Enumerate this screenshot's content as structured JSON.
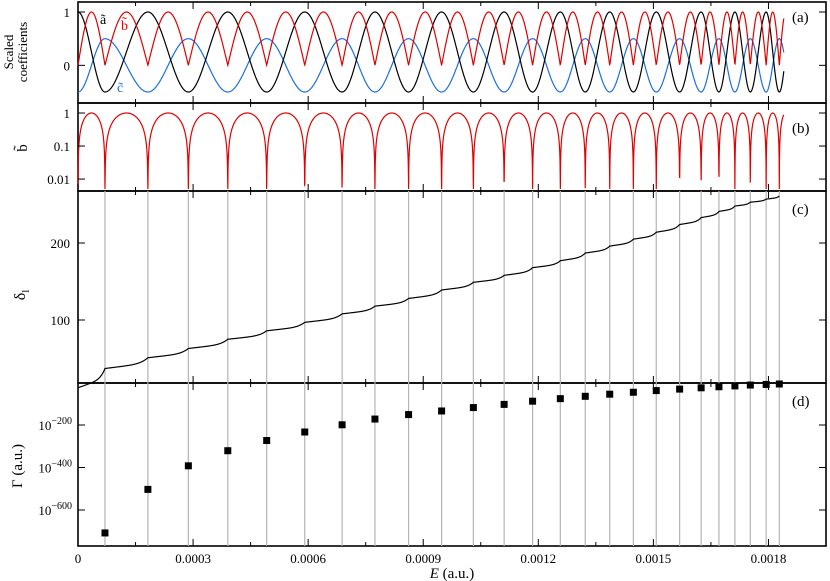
{
  "figure": {
    "x_axis_label_main": "E",
    "x_axis_label_unit": " (a.u.)",
    "colors": {
      "a": "#000000",
      "b": "#e00000",
      "c": "#1a6fe0",
      "marker": "#000000",
      "guide": "#b4b4b4"
    }
  },
  "chart_data": [
    {
      "panel": "(a)",
      "type": "line",
      "ylabel_line1": "Scaled",
      "ylabel_line2": "coefficients",
      "y_ticks": [
        "1",
        "0"
      ],
      "ylim": [
        -0.5,
        1.0
      ],
      "xlim": [
        0,
        0.00184
      ],
      "series": [
        {
          "name": "a",
          "label_glyph": "ã",
          "color": "#000000",
          "form": "cos(phase)",
          "range": [
            -0.5,
            1.0
          ]
        },
        {
          "name": "b",
          "label_glyph": "b̃",
          "color": "#e00000",
          "form": "|sin(phase)|",
          "range": [
            0.0,
            1.0
          ]
        },
        {
          "name": "c",
          "label_glyph": "c̃",
          "color": "#1a6fe0",
          "form": "-0.5*cos(phase)",
          "range": [
            -0.5,
            0.5
          ]
        }
      ]
    },
    {
      "panel": "(b)",
      "type": "line",
      "ylabel": "b̃",
      "y_scale": "log",
      "y_ticks": [
        "1",
        "0.1",
        "0.01"
      ],
      "ylim": [
        0.005,
        1.0
      ],
      "series": [
        {
          "name": "b",
          "color": "#e00000"
        }
      ]
    },
    {
      "panel": "(c)",
      "type": "line",
      "ylabel": "δ",
      "ylabel_sub": "l",
      "y_ticks": [
        "200",
        "100"
      ],
      "ylim": [
        10,
        265
      ],
      "x": [
        0,
        7.03e-05,
        0.0001822,
        0.0002877,
        0.0003905,
        0.0004919,
        0.0005911,
        0.0006885,
        0.0007741,
        0.0008618,
        0.0009479,
        0.0010307,
        0.0011109,
        0.0011851,
        0.0012574,
        0.0013224,
        0.0013862,
        0.0014478,
        0.0015075,
        0.0015684,
        0.0016245,
        0.0016709,
        0.0017125,
        0.0017527,
        0.001794,
        0.0018283
      ],
      "y": [
        12,
        37,
        51,
        63,
        75,
        86,
        97,
        108,
        118,
        128,
        139,
        149,
        158,
        168,
        177,
        187,
        196,
        205,
        214,
        224,
        233,
        241,
        248,
        253,
        257,
        261
      ],
      "color": "#000000"
    },
    {
      "panel": "(d)",
      "type": "scatter",
      "ylabel": "Γ (a.u.)",
      "y_scale": "log",
      "y_ticks": [
        {
          "base": "10",
          "exp": "−200",
          "value": -200
        },
        {
          "base": "10",
          "exp": "−400",
          "value": -400
        },
        {
          "base": "10",
          "exp": "−600",
          "value": -600
        }
      ],
      "ylim_log10": [
        -740,
        -5
      ],
      "x": [
        7.03e-05,
        0.0001822,
        0.0002877,
        0.0003905,
        0.0004919,
        0.0005911,
        0.0006885,
        0.0007741,
        0.0008618,
        0.0009479,
        0.0010307,
        0.0011109,
        0.0011851,
        0.0012574,
        0.0013224,
        0.0013862,
        0.0014478,
        0.0015075,
        0.0015684,
        0.0016245,
        0.0016709,
        0.0017125,
        0.0017527,
        0.001794,
        0.0018283
      ],
      "log10_y": [
        -708,
        -503,
        -392,
        -321,
        -273,
        -233,
        -199,
        -172,
        -151,
        -134,
        -118,
        -103,
        -88,
        -76,
        -65,
        -55,
        -46,
        -38,
        -31,
        -25,
        -20,
        -16,
        -12,
        -9,
        -7
      ],
      "marker_color": "#000000"
    }
  ],
  "x_axis": {
    "tick_values": [
      0,
      0.0003,
      0.0006,
      0.0009,
      0.0012,
      0.0015,
      0.0018
    ],
    "tick_labels": [
      "0",
      "0.0003",
      "0.0006",
      "0.0009",
      "0.0012",
      "0.0015",
      "0.0018"
    ],
    "minor_values": [
      0.00015,
      0.00045,
      0.00075,
      0.00105,
      0.00135,
      0.00165,
      0.00195
    ]
  }
}
